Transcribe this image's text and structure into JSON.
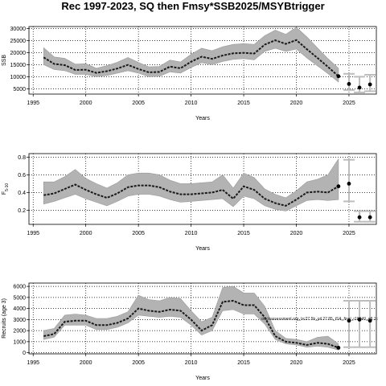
{
  "title": "Rec 1997-2023, SQ then Fmsy*SSB2025/MSYBtrigger",
  "colors": {
    "band": "#b3b3b3",
    "bandEdge": "#9a9a9a",
    "line": "#1a1a1a",
    "grid": "#000000",
    "proj": "#bdbdbd",
    "point": "#000000"
  },
  "chart_data": [
    {
      "type": "line",
      "xlabel": "Years",
      "ylabel": "SSB",
      "xlim": [
        1994.6,
        2027.6
      ],
      "ylim": [
        2800,
        30800
      ],
      "xticks": [
        1995,
        2000,
        2005,
        2010,
        2015,
        2020,
        2025
      ],
      "yticks": [
        5000,
        10000,
        15000,
        20000,
        25000,
        30000
      ],
      "grid": true,
      "years": [
        1996,
        1997,
        1998,
        1999,
        2000,
        2001,
        2002,
        2003,
        2004,
        2005,
        2006,
        2007,
        2008,
        2009,
        2010,
        2011,
        2012,
        2013,
        2014,
        2015,
        2016,
        2017,
        2018,
        2019,
        2020,
        2021,
        2022,
        2023,
        2024
      ],
      "median": [
        18000,
        15300,
        14800,
        12800,
        12900,
        11600,
        12300,
        13400,
        14900,
        13200,
        11800,
        12000,
        14200,
        13500,
        16200,
        18300,
        17400,
        18800,
        19700,
        19900,
        19600,
        23300,
        25100,
        23600,
        25200,
        21400,
        17800,
        14100,
        10200
      ],
      "lower": [
        15000,
        13000,
        12500,
        11000,
        11000,
        10000,
        10500,
        11500,
        12500,
        11500,
        10000,
        10200,
        12000,
        11500,
        13800,
        15800,
        15000,
        16300,
        17200,
        17500,
        17000,
        20500,
        21800,
        20500,
        21500,
        17800,
        14500,
        11300,
        7800
      ],
      "upper": [
        22000,
        18200,
        17600,
        15200,
        15400,
        13500,
        14600,
        16000,
        18000,
        15900,
        14100,
        14300,
        16900,
        16100,
        19300,
        21800,
        20800,
        22400,
        23400,
        23700,
        23400,
        27000,
        29300,
        27600,
        30500,
        26500,
        22000,
        17500,
        13500
      ],
      "projection": [
        {
          "year": 2025,
          "median": 7000,
          "lower": 4500,
          "upper": 11200
        },
        {
          "year": 2026,
          "median": 5500,
          "lower": 3500,
          "upper": 10000
        },
        {
          "year": 2027,
          "median": 6800,
          "lower": 4000,
          "upper": 10800
        }
      ]
    },
    {
      "type": "line",
      "xlabel": "Years",
      "ylabel": "F",
      "ylabel_sub": "5-10",
      "xlim": [
        1994.6,
        2027.6
      ],
      "ylim": [
        0.04,
        0.84
      ],
      "xticks": [
        1995,
        2000,
        2005,
        2010,
        2015,
        2020,
        2025
      ],
      "yticks": [
        0.2,
        0.4,
        0.6,
        0.8
      ],
      "grid": true,
      "years": [
        1996,
        1997,
        1998,
        1999,
        2000,
        2001,
        2002,
        2003,
        2004,
        2005,
        2006,
        2007,
        2008,
        2009,
        2010,
        2011,
        2012,
        2013,
        2014,
        2015,
        2016,
        2017,
        2018,
        2019,
        2020,
        2021,
        2022,
        2023,
        2024
      ],
      "median": [
        0.37,
        0.39,
        0.44,
        0.49,
        0.43,
        0.38,
        0.34,
        0.39,
        0.46,
        0.48,
        0.48,
        0.46,
        0.41,
        0.38,
        0.38,
        0.39,
        0.4,
        0.43,
        0.33,
        0.47,
        0.43,
        0.33,
        0.28,
        0.25,
        0.32,
        0.4,
        0.41,
        0.4,
        0.47
      ],
      "lower": [
        0.27,
        0.3,
        0.34,
        0.38,
        0.33,
        0.29,
        0.25,
        0.3,
        0.36,
        0.38,
        0.38,
        0.36,
        0.32,
        0.29,
        0.3,
        0.31,
        0.32,
        0.33,
        0.24,
        0.36,
        0.33,
        0.25,
        0.21,
        0.19,
        0.25,
        0.31,
        0.32,
        0.31,
        0.32
      ],
      "upper": [
        0.52,
        0.52,
        0.58,
        0.66,
        0.56,
        0.5,
        0.45,
        0.51,
        0.6,
        0.62,
        0.62,
        0.6,
        0.54,
        0.5,
        0.5,
        0.51,
        0.52,
        0.6,
        0.45,
        0.62,
        0.57,
        0.44,
        0.38,
        0.34,
        0.42,
        0.52,
        0.55,
        0.6,
        0.78
      ],
      "projection": [
        {
          "year": 2025,
          "median": 0.5,
          "lower": 0.3,
          "upper": 0.77
        },
        {
          "year": 2026,
          "median": 0.12,
          "lower": 0.07,
          "upper": 0.19
        },
        {
          "year": 2027,
          "median": 0.12,
          "lower": 0.07,
          "upper": 0.19
        }
      ]
    },
    {
      "type": "line",
      "xlabel": "Years",
      "ylabel": "Recruits (age 3)",
      "xlim": [
        1994.6,
        2027.6
      ],
      "ylim": [
        -100,
        6300
      ],
      "xticks": [
        1995,
        2000,
        2005,
        2010,
        2015,
        2020,
        2025
      ],
      "yticks": [
        0,
        1000,
        2000,
        3000,
        4000,
        5000,
        6000
      ],
      "grid": true,
      "years": [
        1996,
        1997,
        1998,
        1999,
        2000,
        2001,
        2002,
        2003,
        2004,
        2005,
        2006,
        2007,
        2008,
        2009,
        2010,
        2011,
        2012,
        2013,
        2014,
        2015,
        2016,
        2017,
        2018,
        2019,
        2020,
        2021,
        2022,
        2023,
        2024
      ],
      "median": [
        1500,
        1700,
        2800,
        2900,
        2900,
        2500,
        2500,
        2700,
        3100,
        4000,
        3800,
        3700,
        3900,
        3800,
        3000,
        2000,
        2500,
        4600,
        4700,
        4300,
        4300,
        3200,
        1500,
        1000,
        900,
        700,
        900,
        800,
        450
      ],
      "lower": [
        1200,
        1400,
        2500,
        2500,
        2500,
        2100,
        2100,
        2300,
        2700,
        3400,
        3300,
        3200,
        3300,
        3200,
        2500,
        1600,
        2000,
        3800,
        3900,
        3500,
        3500,
        2600,
        1200,
        800,
        700,
        500,
        600,
        500,
        250
      ],
      "upper": [
        2000,
        2200,
        3400,
        3500,
        3400,
        3100,
        3100,
        3300,
        3700,
        5200,
        4800,
        4700,
        5000,
        4900,
        3800,
        2800,
        3200,
        5900,
        6000,
        5400,
        5400,
        4200,
        2000,
        1300,
        1200,
        1000,
        1400,
        1500,
        800
      ],
      "projection": [
        {
          "year": 2025,
          "median": 2900,
          "lower": 500,
          "upper": 4700
        },
        {
          "year": 2026,
          "median": 3000,
          "lower": 500,
          "upper": 4700
        },
        {
          "year": 2027,
          "median": 2900,
          "lower": 500,
          "upper": 4700
        }
      ],
      "annotation": "stockassessment.org_Irc27.5b_pil.27.85_tSA_final_r18949_g8.1c"
    }
  ]
}
